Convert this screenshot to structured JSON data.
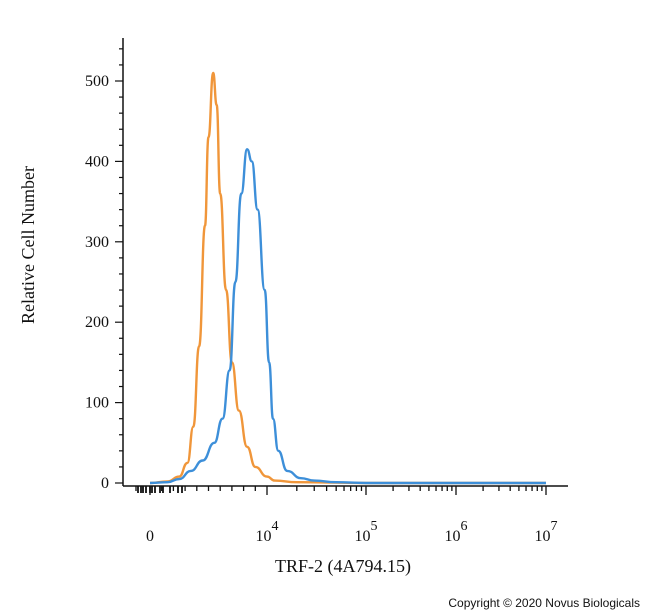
{
  "chart_data": {
    "type": "line",
    "title": "",
    "xlabel": "TRF-2 (4A794.15)",
    "ylabel": "Relative Cell Number",
    "ylim": [
      0,
      560
    ],
    "y_ticks": [
      "0",
      "100",
      "200",
      "300",
      "400",
      "500"
    ],
    "x_tick_labels": [
      {
        "base": "0",
        "exp": ""
      },
      {
        "base": "10",
        "exp": "4"
      },
      {
        "base": "10",
        "exp": "5"
      },
      {
        "base": "10",
        "exp": "6"
      },
      {
        "base": "10",
        "exp": "7"
      }
    ],
    "x_scale": "biexponential (log above 10^4)",
    "grid": false,
    "legend": "none",
    "series": [
      {
        "color": "#f0963a",
        "x": [
          0,
          1500,
          2500,
          3200,
          3700,
          4200,
          4700,
          5000,
          5400,
          5700,
          6000,
          6500,
          7000,
          7600,
          8300,
          9000,
          10000,
          12000,
          20000,
          100000,
          10000000
        ],
        "y": [
          0,
          2,
          8,
          25,
          70,
          170,
          320,
          430,
          510,
          470,
          360,
          240,
          150,
          90,
          45,
          20,
          8,
          3,
          1,
          0,
          0
        ]
      },
      {
        "color": "#3d8fd9",
        "x": [
          0,
          1500,
          2500,
          3500,
          4500,
          5500,
          6200,
          6800,
          7300,
          7800,
          8300,
          8700,
          9200,
          9800,
          10500,
          11500,
          13000,
          16000,
          22000,
          30000,
          50000,
          100000,
          10000000
        ],
        "y": [
          0,
          1,
          5,
          15,
          28,
          50,
          80,
          140,
          250,
          360,
          415,
          400,
          340,
          240,
          150,
          80,
          40,
          15,
          6,
          3,
          1,
          0,
          0
        ]
      }
    ]
  },
  "footer": {
    "copyright": "Copyright © 2020 Novus Biologicals"
  }
}
